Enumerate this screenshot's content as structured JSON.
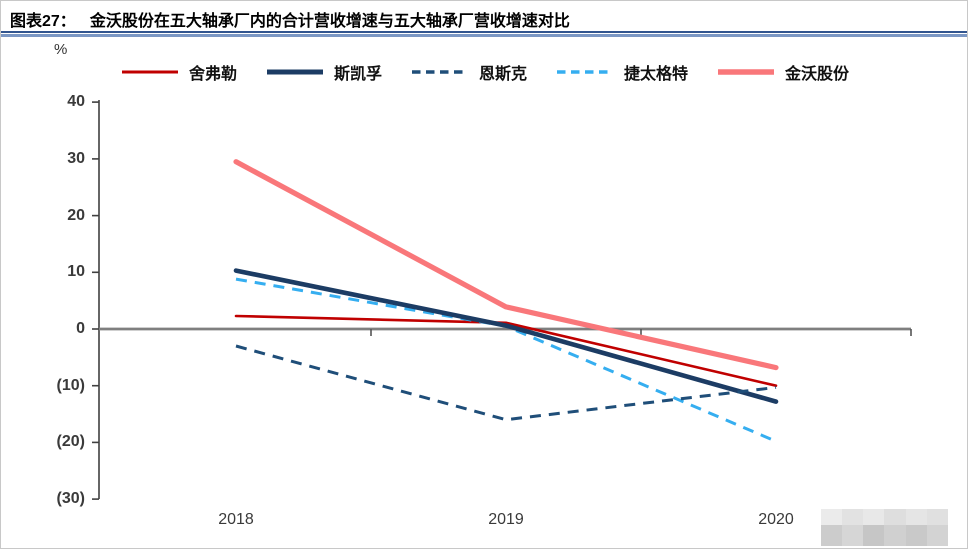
{
  "header": {
    "label": "图表27：",
    "title": "金沃股份在五大轴承厂内的合计营收增速与五大轴承厂营收增速对比"
  },
  "chart_data": {
    "type": "line",
    "title": "金沃股份在五大轴承厂内的合计营收增速与五大轴承厂营收增速对比",
    "unit_label": "%",
    "categories": [
      "2018",
      "2019",
      "2020"
    ],
    "ylim": [
      -30,
      40
    ],
    "yticks": {
      "values": [
        40,
        30,
        20,
        10,
        0,
        -10,
        -20,
        -30
      ],
      "labels": [
        "40",
        "30",
        "20",
        "10",
        "0",
        "(10)",
        "(20)",
        "(30)"
      ]
    },
    "grid": "zero-baseline-only",
    "legend_position": "top",
    "series": [
      {
        "name": "舍弗勒",
        "color": "#C00000",
        "line_style": "solid",
        "line_width": 2.6,
        "values": [
          2.3,
          1.1,
          -10.0
        ]
      },
      {
        "name": "斯凯孚",
        "color": "#1C3C64",
        "line_style": "solid",
        "line_width": 4.6,
        "values": [
          10.3,
          0.6,
          -12.8
        ]
      },
      {
        "name": "恩斯克",
        "color": "#1F4E79",
        "line_style": "dashed",
        "line_width": 3.0,
        "values": [
          -3.0,
          -16.0,
          -10.3
        ]
      },
      {
        "name": "捷太格特",
        "color": "#35AEF0",
        "line_style": "dashed",
        "line_width": 3.0,
        "values": [
          8.8,
          0.5,
          -19.8
        ]
      },
      {
        "name": "金沃股份",
        "color": "#F9777A",
        "line_style": "solid",
        "line_width": 5.2,
        "values": [
          29.5,
          3.9,
          -6.8
        ]
      }
    ]
  }
}
